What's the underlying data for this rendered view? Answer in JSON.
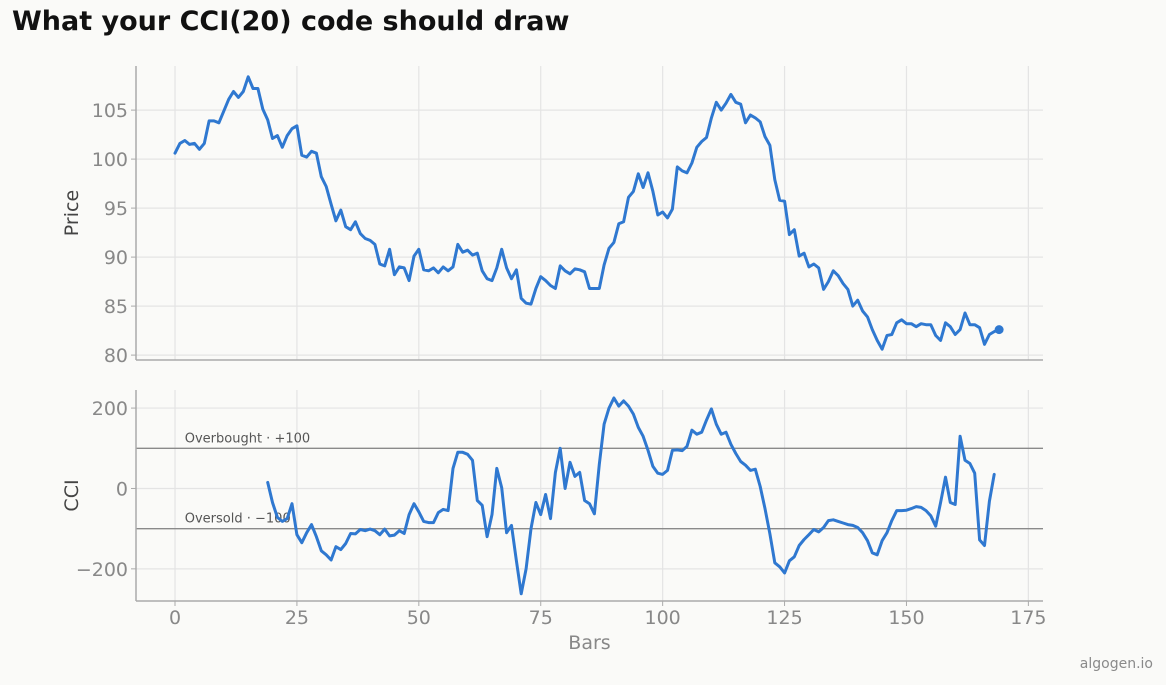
{
  "title": "What your CCI(20) code should draw",
  "watermark": "algogen.io",
  "colors": {
    "line": "#2f78d0",
    "grid": "#e4e4e4",
    "axis": "#aaaaaa",
    "ref": "#8a8a8a",
    "tick": "#888888",
    "label": "#444444"
  },
  "chart_data": [
    {
      "type": "line",
      "ylabel": "Price",
      "xlim": [
        -8,
        178
      ],
      "ylim": [
        79.5,
        109.5
      ],
      "xticks": [
        0,
        25,
        50,
        75,
        100,
        125,
        150,
        175
      ],
      "yticks": [
        80,
        85,
        90,
        95,
        100,
        105
      ],
      "ytick_labels": [
        "80",
        "85",
        "90",
        "95",
        "100",
        "105"
      ],
      "grid": true,
      "series": [
        {
          "x_start": 0,
          "values": [
            100.6,
            101.6,
            101.9,
            101.5,
            101.6,
            101.0,
            101.6,
            103.9,
            103.9,
            103.7,
            104.9,
            106.1,
            106.9,
            106.3,
            106.9,
            108.4,
            107.2,
            107.2,
            105.1,
            104.0,
            102.1,
            102.4,
            101.2,
            102.4,
            103.1,
            103.4,
            100.4,
            100.2,
            100.8,
            100.6,
            98.2,
            97.2,
            95.4,
            93.7,
            94.8,
            93.1,
            92.8,
            93.6,
            92.4,
            91.9,
            91.7,
            91.3,
            89.3,
            89.1,
            90.8,
            88.2,
            89.0,
            88.9,
            87.6,
            90.1,
            90.8,
            88.7,
            88.6,
            88.9,
            88.4,
            89.0,
            88.6,
            89.0,
            91.3,
            90.5,
            90.7,
            90.2,
            90.4,
            88.6,
            87.8,
            87.6,
            88.9,
            90.8,
            88.9,
            87.8,
            88.7,
            85.8,
            85.3,
            85.2,
            86.8,
            88.0,
            87.6,
            87.1,
            86.8,
            89.1,
            88.6,
            88.3,
            88.8,
            88.7,
            88.5,
            86.8,
            86.8,
            86.8,
            89.2,
            90.9,
            91.5,
            93.4,
            93.6,
            96.1,
            96.7,
            98.5,
            97.1,
            98.6,
            96.7,
            94.3,
            94.6,
            94.0,
            94.9,
            99.2,
            98.8,
            98.6,
            99.6,
            101.2,
            101.8,
            102.2,
            104.2,
            105.8,
            105.0,
            105.7,
            106.6,
            105.8,
            105.6,
            103.7,
            104.5,
            104.2,
            103.8,
            102.3,
            101.4,
            97.9,
            95.8,
            95.7,
            92.3,
            92.8,
            90.1,
            90.4,
            89.0,
            89.3,
            88.9,
            86.7,
            87.5,
            88.6,
            88.1,
            87.3,
            86.7,
            85.0,
            85.6,
            84.5,
            83.9,
            82.6,
            81.5,
            80.6,
            82.0,
            82.1,
            83.3,
            83.6,
            83.2,
            83.2,
            82.9,
            83.2,
            83.1,
            83.1,
            82.0,
            81.5,
            83.3,
            82.9,
            82.1,
            82.6,
            84.3,
            83.1,
            83.1,
            82.8,
            81.1,
            82.1,
            82.4,
            82.6
          ],
          "last_point_marker": true
        }
      ]
    },
    {
      "type": "line",
      "xlabel": "Bars",
      "ylabel": "CCI",
      "xlim": [
        -8,
        178
      ],
      "ylim": [
        -280,
        245
      ],
      "xticks": [
        0,
        25,
        50,
        75,
        100,
        125,
        150,
        175
      ],
      "xtick_labels": [
        "0",
        "25",
        "50",
        "75",
        "100",
        "125",
        "150",
        "175"
      ],
      "yticks": [
        -200,
        0,
        200
      ],
      "ytick_labels": [
        "−200",
        "0",
        "200"
      ],
      "grid": true,
      "reference_lines": [
        {
          "y": 100,
          "label": "Overbought · +100"
        },
        {
          "y": -100,
          "label": "Oversold · −100"
        }
      ],
      "series": [
        {
          "x_start": 19,
          "values": [
            15,
            -35,
            -72,
            -82,
            -75,
            -38,
            -115,
            -135,
            -110,
            -90,
            -120,
            -155,
            -165,
            -178,
            -145,
            -152,
            -137,
            -112,
            -113,
            -102,
            -105,
            -101,
            -105,
            -115,
            -101,
            -118,
            -116,
            -105,
            -112,
            -65,
            -38,
            -58,
            -82,
            -85,
            -85,
            -60,
            -52,
            -55,
            50,
            90,
            90,
            85,
            70,
            -30,
            -42,
            -120,
            -65,
            50,
            2,
            -110,
            -92,
            -180,
            -262,
            -200,
            -100,
            -35,
            -65,
            -15,
            -75,
            40,
            100,
            0,
            65,
            30,
            40,
            -30,
            -38,
            -63,
            60,
            160,
            200,
            225,
            205,
            218,
            205,
            185,
            152,
            130,
            95,
            55,
            38,
            35,
            45,
            95,
            96,
            94,
            105,
            145,
            135,
            140,
            170,
            198,
            160,
            135,
            140,
            110,
            87,
            67,
            58,
            45,
            48,
            5,
            -50,
            -113,
            -185,
            -195,
            -210,
            -180,
            -170,
            -142,
            -127,
            -115,
            -102,
            -108,
            -97,
            -80,
            -78,
            -82,
            -86,
            -90,
            -92,
            -97,
            -110,
            -130,
            -160,
            -165,
            -130,
            -110,
            -80,
            -55,
            -55,
            -54,
            -50,
            -45,
            -47,
            -55,
            -68,
            -94,
            -35,
            28,
            -35,
            -40,
            130,
            70,
            62,
            38,
            -128,
            -142,
            -32,
            35
          ]
        }
      ]
    }
  ]
}
